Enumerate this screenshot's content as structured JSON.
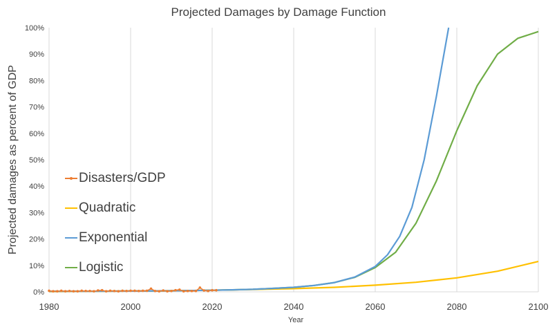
{
  "chart_data": {
    "type": "line",
    "title": "Projected Damages by Damage Function",
    "xlabel": "Year",
    "ylabel": "Projected damages as percent of GDP",
    "xlim": [
      1980,
      2100
    ],
    "ylim": [
      0,
      1
    ],
    "x_ticks": [
      "1980",
      "2000",
      "2020",
      "2040",
      "2060",
      "2080",
      "2100"
    ],
    "y_ticks": [
      "0%",
      "10%",
      "20%",
      "30%",
      "40%",
      "50%",
      "60%",
      "70%",
      "80%",
      "90%",
      "100%"
    ],
    "grid": "vertical",
    "legend_position": "left",
    "series": [
      {
        "name": "Disasters/GDP",
        "color": "#ed7d31",
        "marker": "dot",
        "x": [
          1980,
          1981,
          1982,
          1983,
          1984,
          1985,
          1986,
          1987,
          1988,
          1989,
          1990,
          1991,
          1992,
          1993,
          1994,
          1995,
          1996,
          1997,
          1998,
          1999,
          2000,
          2001,
          2002,
          2003,
          2004,
          2005,
          2006,
          2007,
          2008,
          2009,
          2010,
          2011,
          2012,
          2013,
          2014,
          2015,
          2016,
          2017,
          2018,
          2019,
          2020,
          2021
        ],
        "y": [
          0.004,
          0.002,
          0.002,
          0.004,
          0.002,
          0.003,
          0.002,
          0.002,
          0.004,
          0.003,
          0.003,
          0.002,
          0.005,
          0.006,
          0.002,
          0.004,
          0.003,
          0.002,
          0.004,
          0.003,
          0.004,
          0.004,
          0.003,
          0.004,
          0.004,
          0.012,
          0.003,
          0.002,
          0.005,
          0.002,
          0.003,
          0.006,
          0.008,
          0.002,
          0.003,
          0.003,
          0.003,
          0.016,
          0.005,
          0.003,
          0.006,
          0.006
        ]
      },
      {
        "name": "Quadratic",
        "color": "#ffc000",
        "x": [
          1980,
          1990,
          2000,
          2010,
          2020,
          2030,
          2040,
          2050,
          2060,
          2070,
          2080,
          2090,
          2100
        ],
        "y": [
          0.001,
          0.002,
          0.003,
          0.004,
          0.006,
          0.009,
          0.012,
          0.017,
          0.025,
          0.036,
          0.053,
          0.078,
          0.115
        ]
      },
      {
        "name": "Exponential",
        "color": "#5b9bd5",
        "x": [
          1980,
          1990,
          2000,
          2010,
          2020,
          2025,
          2030,
          2035,
          2040,
          2045,
          2050,
          2055,
          2060,
          2063,
          2066,
          2069,
          2072,
          2075,
          2078
        ],
        "y": [
          0.002,
          0.002,
          0.003,
          0.004,
          0.006,
          0.0075,
          0.0095,
          0.013,
          0.017,
          0.024,
          0.035,
          0.056,
          0.096,
          0.14,
          0.21,
          0.32,
          0.5,
          0.74,
          1.0
        ]
      },
      {
        "name": "Logistic",
        "color": "#70ad47",
        "x": [
          1980,
          1990,
          2000,
          2010,
          2020,
          2025,
          2030,
          2035,
          2040,
          2045,
          2050,
          2055,
          2060,
          2065,
          2070,
          2075,
          2080,
          2085,
          2090,
          2095,
          2100
        ],
        "y": [
          0.002,
          0.002,
          0.003,
          0.004,
          0.006,
          0.0075,
          0.0095,
          0.013,
          0.017,
          0.024,
          0.035,
          0.055,
          0.092,
          0.15,
          0.26,
          0.42,
          0.61,
          0.78,
          0.9,
          0.96,
          0.985
        ]
      }
    ]
  }
}
